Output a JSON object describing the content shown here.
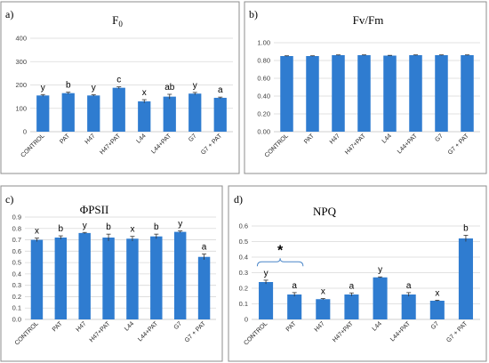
{
  "colors": {
    "bar": "#2f7cd0",
    "frame": "#8c8c8c",
    "grid": "#d9d9d9",
    "bracket": "#4a86c8"
  },
  "chart_data": [
    {
      "type": "bar",
      "panel_letter": "a)",
      "title": "F",
      "title_subscript": "0",
      "categories": [
        "CONTROL",
        "PAT",
        "H47",
        "H47+PAT",
        "L44",
        "L44+PAT",
        "G7",
        "G7 + PAT"
      ],
      "values": [
        155,
        165,
        155,
        188,
        130,
        150,
        163,
        145
      ],
      "errors": [
        4,
        4,
        3,
        4,
        7,
        10,
        5,
        3
      ],
      "significance": [
        "y",
        "b",
        "y",
        "c",
        "x",
        "ab",
        "y",
        "a"
      ],
      "ylim": [
        0,
        400
      ],
      "yticks": [
        "0",
        "100",
        "200",
        "300",
        "400"
      ],
      "grid": true,
      "xlabel": "",
      "ylabel": ""
    },
    {
      "type": "bar",
      "panel_letter": "b)",
      "title": "Fv/Fm",
      "title_subscript": "",
      "categories": [
        "CONTROL",
        "PAT",
        "H47",
        "H47+PAT",
        "L44",
        "L44+PAT",
        "G7",
        "G7 + PAT"
      ],
      "values": [
        0.85,
        0.85,
        0.86,
        0.86,
        0.855,
        0.86,
        0.86,
        0.86
      ],
      "errors": [
        0.003,
        0.003,
        0.003,
        0.003,
        0.003,
        0.003,
        0.003,
        0.003
      ],
      "significance": [
        "",
        "",
        "",
        "",
        "",
        "",
        "",
        ""
      ],
      "ylim": [
        0,
        1
      ],
      "yticks": [
        "0.00",
        "0.20",
        "0.40",
        "0.60",
        "0.80",
        "1.00"
      ],
      "grid": true,
      "xlabel": "",
      "ylabel": ""
    },
    {
      "type": "bar",
      "panel_letter": "c)",
      "title": "ΦPSII",
      "title_subscript": "",
      "categories": [
        "CONTROL",
        "PAT",
        "H47",
        "H47+PAT",
        "L44",
        "L44+PAT",
        "G7",
        "G7 + PAT"
      ],
      "values": [
        0.7,
        0.72,
        0.76,
        0.72,
        0.71,
        0.73,
        0.77,
        0.55
      ],
      "errors": [
        0.015,
        0.015,
        0.005,
        0.03,
        0.02,
        0.02,
        0.008,
        0.025
      ],
      "significance": [
        "x",
        "b",
        "y",
        "b",
        "x",
        "b",
        "y",
        "a"
      ],
      "ylim": [
        0,
        0.9
      ],
      "yticks": [
        "0.0",
        "0.1",
        "0.2",
        "0.3",
        "0.4",
        "0.5",
        "0.6",
        "0.7",
        "0.8",
        "0.9"
      ],
      "grid": true,
      "xlabel": "",
      "ylabel": ""
    },
    {
      "type": "bar",
      "panel_letter": "d)",
      "title": "NPQ",
      "title_subscript": "",
      "categories": [
        "CONTROL",
        "PAT",
        "H47",
        "H47+PAT",
        "L44",
        "L44+PAT",
        "G7",
        "G7 + PAT"
      ],
      "values": [
        0.24,
        0.16,
        0.13,
        0.16,
        0.27,
        0.16,
        0.12,
        0.52
      ],
      "errors": [
        0.012,
        0.012,
        0.004,
        0.01,
        0.003,
        0.012,
        0.003,
        0.02
      ],
      "significance": [
        "y",
        "a",
        "x",
        "a",
        "y",
        "a",
        "x",
        "b"
      ],
      "ylim": [
        0,
        0.6
      ],
      "yticks": [
        "0",
        "0.1",
        "0.2",
        "0.3",
        "0.4",
        "0.5",
        "0.6"
      ],
      "grid": true,
      "xlabel": "",
      "ylabel": "",
      "annotation": "*",
      "bracket_span": [
        "CONTROL",
        "PAT"
      ]
    }
  ]
}
